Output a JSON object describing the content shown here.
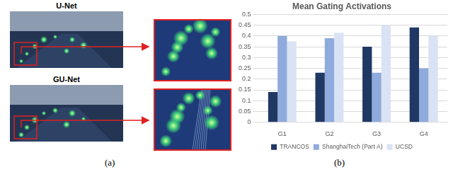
{
  "figure": {
    "panel_a": {
      "label": "(a)",
      "images": [
        {
          "title": "U-Net"
        },
        {
          "title": "GU-Net"
        }
      ]
    },
    "panel_b": {
      "label": "(b)"
    }
  },
  "chart_data": {
    "type": "bar",
    "title": "Mean Gating Activations",
    "categories": [
      "G1",
      "G2",
      "G3",
      "G4"
    ],
    "series": [
      {
        "name": "TRANCOS",
        "color": "#203864",
        "values": [
          0.14,
          0.23,
          0.35,
          0.44
        ]
      },
      {
        "name": "ShanghaiTech (Part A)",
        "color": "#8faadc",
        "values": [
          0.4,
          0.39,
          0.23,
          0.25
        ]
      },
      {
        "name": "UCSD",
        "color": "#dae3f3",
        "values": [
          0.375,
          0.415,
          0.45,
          0.4
        ]
      }
    ],
    "ylim": [
      0,
      0.5
    ],
    "yticks": [
      0,
      0.05,
      0.1,
      0.15,
      0.2,
      0.25,
      0.3,
      0.35,
      0.4,
      0.45,
      0.5
    ],
    "grid": true,
    "legend": "bottom"
  }
}
